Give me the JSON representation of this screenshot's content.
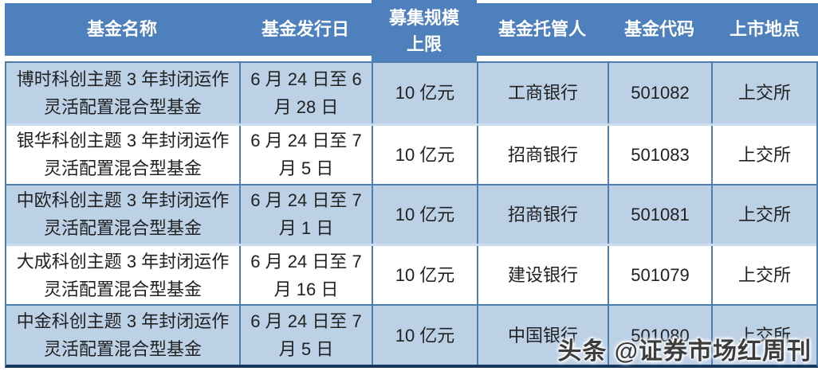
{
  "chart_data": {
    "type": "table",
    "columns": [
      "基金名称",
      "基金发行日",
      "募集规模上限",
      "基金托管人",
      "基金代码",
      "上市地点"
    ],
    "rows": [
      [
        "博时科创主题3年封闭运作灵活配置混合型基金",
        "6月24日至6月28日",
        "10亿元",
        "工商银行",
        "501082",
        "上交所"
      ],
      [
        "银华科创主题3年封闭运作灵活配置混合型基金",
        "6月24日至7月5日",
        "10亿元",
        "招商银行",
        "501083",
        "上交所"
      ],
      [
        "中欧科创主题3年封闭运作灵活配置混合型基金",
        "6月24日至7月1日",
        "10亿元",
        "招商银行",
        "501081",
        "上交所"
      ],
      [
        "大成科创主题3年封闭运作灵活配置混合型基金",
        "6月24日至7月16日",
        "10亿元",
        "建设银行",
        "501079",
        "上交所"
      ],
      [
        "中金科创主题3年封闭运作灵活配置混合型基金",
        "6月24日至7月5日",
        "10亿元",
        "中国银行",
        "501080",
        "上交所"
      ]
    ]
  },
  "table": {
    "headers": [
      "基金名称",
      "基金发行日",
      "募集规模\n上限",
      "基金托管人",
      "基金代码",
      "上市地点"
    ],
    "rows": [
      {
        "cells": [
          "博时科创主题 3 年封闭运作\n灵活配置混合型基金",
          "6 月 24 日至 6\n月 28 日",
          "10 亿元",
          "工商银行",
          "501082",
          "上交所"
        ]
      },
      {
        "cells": [
          "银华科创主题 3 年封闭运作\n灵活配置混合型基金",
          "6 月 24 日至 7\n月 5 日",
          "10 亿元",
          "招商银行",
          "501083",
          "上交所"
        ]
      },
      {
        "cells": [
          "中欧科创主题 3 年封闭运作\n灵活配置混合型基金",
          "6 月 24 日至 7\n月 1 日",
          "10 亿元",
          "招商银行",
          "501081",
          "上交所"
        ]
      },
      {
        "cells": [
          "大成科创主题 3 年封闭运作\n灵活配置混合型基金",
          "6 月 24 日至 7\n月 16 日",
          "10 亿元",
          "建设银行",
          "501079",
          "上交所"
        ]
      },
      {
        "cells": [
          "中金科创主题 3 年封闭运作\n灵活配置混合型基金",
          "6 月 24 日至 7\n月 5 日",
          "10 亿元",
          "中国银行",
          "501080",
          "上交所"
        ]
      }
    ]
  },
  "watermark": {
    "text": "头条 @证券市场红周刊"
  },
  "colors": {
    "header_bg": "#4e80bd",
    "row_alt_bg": "#bcd0e6",
    "row_bg": "#ffffff",
    "grid_border": "#4d7eae",
    "light_border": "#cadcee",
    "outer_bottom": "#17375e",
    "header_text": "#ffffff",
    "cell_text": "#212121",
    "watermark_text": "#3c3c3c"
  }
}
